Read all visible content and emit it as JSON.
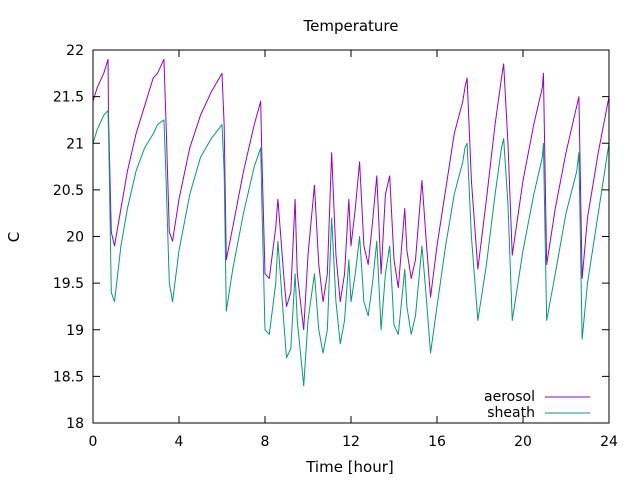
{
  "chart_data": {
    "type": "line",
    "title": "Temperature",
    "xlabel": "Time [hour]",
    "ylabel": "C",
    "xlim": [
      0,
      24
    ],
    "ylim": [
      18,
      22
    ],
    "xticks": [
      0,
      4,
      8,
      12,
      16,
      20,
      24
    ],
    "yticks": [
      18,
      18.5,
      19,
      19.5,
      20,
      20.5,
      21,
      21.5,
      22
    ],
    "ytick_labels": [
      "18",
      "18.5",
      "19",
      "19.5",
      "20",
      "20.5",
      "21",
      "21.5",
      "22"
    ],
    "grid": false,
    "legend_position": "bottom-right",
    "series": [
      {
        "name": "aerosol",
        "color": "#9400d3",
        "x": [
          0,
          0.2,
          0.5,
          0.7,
          0.72,
          0.85,
          1.0,
          1.3,
          1.6,
          2.0,
          2.4,
          2.8,
          3.0,
          3.3,
          3.4,
          3.55,
          3.7,
          4.0,
          4.5,
          5.0,
          5.5,
          6.0,
          6.1,
          6.2,
          6.5,
          7.0,
          7.5,
          7.8,
          7.85,
          8.0,
          8.2,
          8.5,
          8.6,
          8.9,
          9.0,
          9.2,
          9.4,
          9.5,
          9.8,
          10.0,
          10.3,
          10.5,
          10.7,
          10.9,
          11.1,
          11.3,
          11.5,
          11.7,
          11.9,
          12.0,
          12.2,
          12.4,
          12.6,
          12.8,
          13.0,
          13.2,
          13.4,
          13.6,
          13.8,
          14.0,
          14.2,
          14.5,
          14.6,
          14.8,
          15.0,
          15.3,
          15.5,
          15.7,
          16.0,
          16.4,
          16.8,
          17.2,
          17.3,
          17.4,
          17.6,
          17.9,
          18.3,
          18.7,
          19.0,
          19.1,
          19.3,
          19.5,
          20.0,
          20.5,
          20.9,
          20.95,
          21.1,
          21.5,
          22.0,
          22.5,
          22.6,
          22.75,
          23.0,
          23.5,
          24.0
        ],
        "values": [
          21.45,
          21.6,
          21.75,
          21.9,
          21.3,
          20.05,
          19.9,
          20.3,
          20.7,
          21.1,
          21.4,
          21.7,
          21.75,
          21.9,
          21.2,
          20.05,
          19.95,
          20.4,
          20.95,
          21.3,
          21.55,
          21.75,
          21.2,
          19.75,
          20.1,
          20.7,
          21.2,
          21.45,
          20.9,
          19.6,
          19.55,
          20.1,
          20.4,
          19.5,
          19.25,
          19.4,
          20.4,
          19.6,
          19.0,
          19.8,
          20.55,
          19.7,
          19.3,
          19.6,
          20.9,
          19.8,
          19.3,
          19.6,
          20.4,
          19.9,
          20.3,
          20.8,
          19.9,
          19.7,
          20.15,
          20.65,
          19.6,
          20.45,
          20.65,
          19.75,
          19.45,
          20.3,
          19.85,
          19.55,
          19.75,
          20.6,
          19.95,
          19.35,
          19.9,
          20.5,
          21.1,
          21.45,
          21.6,
          21.7,
          20.6,
          19.65,
          20.4,
          21.2,
          21.7,
          21.85,
          21.0,
          19.8,
          20.6,
          21.2,
          21.6,
          21.75,
          19.7,
          20.3,
          20.9,
          21.4,
          21.5,
          19.55,
          20.2,
          20.9,
          21.5
        ]
      },
      {
        "name": "sheath",
        "color": "#009e73",
        "x": [
          0,
          0.2,
          0.5,
          0.7,
          0.75,
          0.85,
          1.0,
          1.3,
          1.6,
          2.0,
          2.4,
          2.8,
          3.0,
          3.3,
          3.4,
          3.55,
          3.7,
          4.0,
          4.5,
          5.0,
          5.5,
          6.0,
          6.1,
          6.2,
          6.5,
          7.0,
          7.5,
          7.8,
          7.85,
          8.0,
          8.2,
          8.5,
          8.6,
          8.9,
          9.0,
          9.2,
          9.4,
          9.5,
          9.8,
          10.0,
          10.3,
          10.5,
          10.7,
          10.9,
          11.1,
          11.3,
          11.5,
          11.7,
          11.9,
          12.0,
          12.2,
          12.4,
          12.6,
          12.8,
          13.0,
          13.2,
          13.4,
          13.6,
          13.8,
          14.0,
          14.2,
          14.5,
          14.6,
          14.8,
          15.0,
          15.3,
          15.5,
          15.7,
          16.0,
          16.4,
          16.8,
          17.2,
          17.3,
          17.4,
          17.6,
          17.9,
          18.3,
          18.7,
          19.0,
          19.1,
          19.3,
          19.5,
          20.0,
          20.5,
          20.9,
          20.95,
          21.1,
          21.5,
          22.0,
          22.5,
          22.6,
          22.75,
          23.0,
          23.5,
          24.0
        ],
        "values": [
          21.0,
          21.15,
          21.3,
          21.35,
          20.8,
          19.4,
          19.3,
          19.9,
          20.3,
          20.7,
          20.95,
          21.1,
          21.2,
          21.25,
          20.6,
          19.5,
          19.3,
          19.85,
          20.45,
          20.85,
          21.05,
          21.2,
          20.7,
          19.2,
          19.65,
          20.25,
          20.75,
          20.95,
          20.4,
          19.0,
          18.95,
          19.5,
          19.95,
          19.0,
          18.7,
          18.8,
          19.6,
          19.1,
          18.4,
          19.1,
          19.6,
          19.0,
          18.75,
          19.0,
          20.2,
          19.3,
          18.85,
          19.1,
          19.75,
          19.3,
          19.6,
          20.0,
          19.3,
          19.15,
          19.5,
          19.95,
          19.0,
          19.6,
          19.9,
          19.05,
          18.95,
          19.65,
          19.25,
          18.95,
          19.15,
          19.9,
          19.35,
          18.75,
          19.25,
          19.9,
          20.45,
          20.8,
          20.95,
          21.0,
          20.0,
          19.1,
          19.7,
          20.45,
          20.95,
          21.05,
          20.35,
          19.1,
          19.85,
          20.45,
          20.85,
          21.0,
          19.1,
          19.6,
          20.25,
          20.7,
          20.9,
          18.9,
          19.5,
          20.25,
          21.0
        ]
      }
    ]
  }
}
